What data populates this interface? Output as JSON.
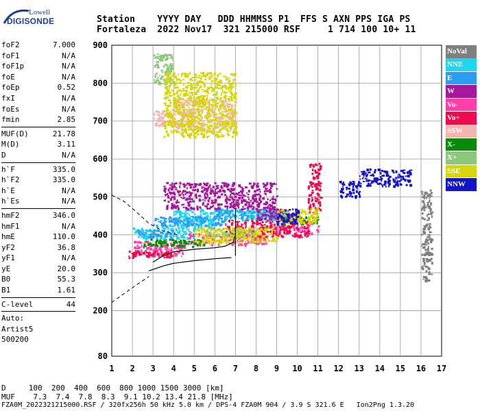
{
  "logo": {
    "line1": "Lowell",
    "line2": "DIGISONDE"
  },
  "header": {
    "row1": "Station    YYYY DAY   DDD HHMMSS P1  FFS S AXN PPS IGA PS",
    "row2": "Fortaleza  2022 Nov17  321 215000 RSF     1 714 100 10+ 11"
  },
  "params": [
    {
      "label": "foF2",
      "value": "7.000"
    },
    {
      "label": "foF1",
      "value": "N/A"
    },
    {
      "label": "foF1p",
      "value": "N/A"
    },
    {
      "label": "foE",
      "value": "N/A"
    },
    {
      "label": "foEp",
      "value": "0.52"
    },
    {
      "label": "fxI",
      "value": "N/A"
    },
    {
      "label": "foEs",
      "value": "N/A"
    },
    {
      "label": "fmin",
      "value": "2.85"
    },
    {
      "label": "MUF(D)",
      "value": "21.78"
    },
    {
      "label": "M(D)",
      "value": "3.11"
    },
    {
      "label": "D",
      "value": "N/A"
    },
    {
      "label": "h`F",
      "value": "335.0"
    },
    {
      "label": "h`F2",
      "value": "335.0"
    },
    {
      "label": "h`E",
      "value": "N/A"
    },
    {
      "label": "h`Es",
      "value": "N/A"
    },
    {
      "label": "hmF2",
      "value": "346.0"
    },
    {
      "label": "hmF1",
      "value": "N/A"
    },
    {
      "label": "hmE",
      "value": "110.0"
    },
    {
      "label": "yF2",
      "value": "36.8"
    },
    {
      "label": "yF1",
      "value": "N/A"
    },
    {
      "label": "yE",
      "value": "20.0"
    },
    {
      "label": "B0",
      "value": "55.3"
    },
    {
      "label": "B1",
      "value": "1.61"
    },
    {
      "label": "C-level",
      "value": "44"
    }
  ],
  "footer_left": {
    "auto": "Auto:",
    "artist": "Artist5",
    "version": "500200"
  },
  "legend": [
    {
      "label": "NoVal",
      "color": "#7f7f7f"
    },
    {
      "label": "NNE",
      "color": "#1ed6f0"
    },
    {
      "label": "E",
      "color": "#2a9df4"
    },
    {
      "label": "W",
      "color": "#a4189c"
    },
    {
      "label": "Vo-",
      "color": "#ff3fa8"
    },
    {
      "label": "Vo+",
      "color": "#ee0a4e"
    },
    {
      "label": "SSW",
      "color": "#f4b4b4"
    },
    {
      "label": "X-",
      "color": "#0a8a0a"
    },
    {
      "label": "X+",
      "color": "#8cc87a"
    },
    {
      "label": "SSE",
      "color": "#d6d60a"
    },
    {
      "label": "NNW",
      "color": "#1414c8"
    }
  ],
  "bottom": {
    "row1": "D     100  200  400  600  800 1000 1500 3000 [km]",
    "row2": "MUF    7.3  7.4  7.8  8.3  9.1 10.2 13.4 21.8 [MHz]",
    "row3": "FZA0M_2022321215000.RSF / 320fx256h 50 kHz 5.0 km / DPS-4 FZA0M 904 / 3.9 S 321.6 E   Ion2Png 1.3.20"
  },
  "chart_data": {
    "type": "scatter",
    "title": "",
    "xlabel": "",
    "ylabel": "",
    "xlim": [
      1,
      17
    ],
    "ylim": [
      80,
      900
    ],
    "x_ticks": [
      1,
      2,
      3,
      4,
      5,
      6,
      7,
      8,
      9,
      10,
      11,
      12,
      13,
      14,
      15,
      16,
      17
    ],
    "y_ticks": [
      80,
      200,
      300,
      400,
      500,
      600,
      700,
      800,
      900
    ],
    "grid": true,
    "legend_position": "right",
    "profile_curve_solid": [
      [
        3.0,
        328
      ],
      [
        3.5,
        345
      ],
      [
        4.0,
        355
      ],
      [
        5.0,
        362
      ],
      [
        6.0,
        366
      ],
      [
        6.5,
        370
      ],
      [
        6.9,
        380
      ],
      [
        6.95,
        395
      ]
    ],
    "profile_curve_low": [
      [
        2.8,
        305
      ],
      [
        3.5,
        318
      ],
      [
        4.0,
        325
      ],
      [
        5.0,
        332
      ],
      [
        6.0,
        337
      ],
      [
        6.8,
        340
      ]
    ],
    "profile_curve_dashed": [
      [
        1.0,
        505
      ],
      [
        1.6,
        488
      ],
      [
        2.2,
        460
      ],
      [
        2.8,
        430
      ],
      [
        3.5,
        410
      ],
      [
        4.2,
        400
      ],
      [
        1.0,
        222
      ],
      [
        1.6,
        245
      ],
      [
        2.2,
        268
      ],
      [
        2.8,
        290
      ]
    ],
    "series": [
      {
        "name": "NNE",
        "color": "#1ed6f0",
        "clusters": [
          [
            3.2,
            420,
            6.0,
            445
          ],
          [
            4.0,
            440,
            9.5,
            470
          ],
          [
            2.0,
            390,
            5.0,
            420
          ]
        ]
      },
      {
        "name": "E",
        "color": "#2a9df4",
        "clusters": [
          [
            3.0,
            425,
            6.5,
            450
          ],
          [
            6.0,
            445,
            9.0,
            470
          ],
          [
            2.2,
            395,
            4.0,
            415
          ]
        ]
      },
      {
        "name": "W",
        "color": "#a4189c",
        "clusters": [
          [
            3.5,
            470,
            9.0,
            540
          ],
          [
            8.0,
            440,
            10.0,
            470
          ]
        ]
      },
      {
        "name": "Vo-",
        "color": "#ff3fa8",
        "clusters": [
          [
            2.0,
            345,
            4.5,
            385
          ],
          [
            4.5,
            375,
            8.5,
            405
          ],
          [
            8.5,
            405,
            11.0,
            440
          ]
        ]
      },
      {
        "name": "Vo+",
        "color": "#ee0a4e",
        "clusters": [
          [
            1.8,
            340,
            4.0,
            360
          ],
          [
            6.5,
            395,
            10.5,
            440
          ],
          [
            10.5,
            460,
            11.1,
            590
          ]
        ]
      },
      {
        "name": "SSW",
        "color": "#f4b4b4",
        "clusters": [
          [
            4.0,
            680,
            7.0,
            760
          ],
          [
            3.0,
            690,
            5.0,
            730
          ]
        ]
      },
      {
        "name": "X-",
        "color": "#0a8a0a",
        "clusters": [
          [
            2.5,
            370,
            5.5,
            390
          ],
          [
            9.0,
            430,
            11.0,
            450
          ]
        ]
      },
      {
        "name": "X+",
        "color": "#8cc87a",
        "clusters": [
          [
            3.0,
            800,
            4.0,
            880
          ],
          [
            5.5,
            395,
            8.0,
            420
          ]
        ]
      },
      {
        "name": "SSE",
        "color": "#d6d60a",
        "clusters": [
          [
            3.5,
            660,
            7.0,
            830
          ],
          [
            5.0,
            380,
            9.0,
            420
          ],
          [
            9.0,
            430,
            11.0,
            470
          ]
        ]
      },
      {
        "name": "NNW",
        "color": "#1414c8",
        "clusters": [
          [
            13.0,
            530,
            15.5,
            575
          ],
          [
            9.0,
            430,
            10.0,
            470
          ],
          [
            12.0,
            500,
            13.0,
            545
          ]
        ]
      },
      {
        "name": "NoVal",
        "color": "#7f7f7f",
        "clusters": [
          [
            16.0,
            280,
            16.5,
            520
          ]
        ]
      }
    ]
  }
}
